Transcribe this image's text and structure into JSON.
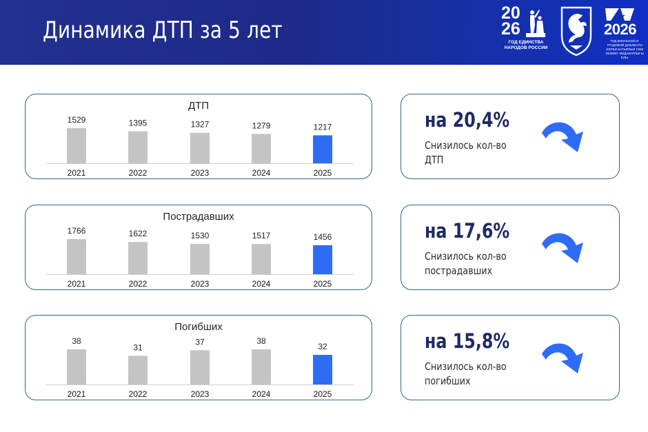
{
  "header": {
    "title": "Динамика ДТП за 5 лет",
    "logo_left": {
      "year_top": "20",
      "year_bottom": "26",
      "caption_line1": "ГОД ЕДИНСТВА",
      "caption_line2": "НАРОДОВ РОССИИ"
    },
    "logo_right": {
      "year": "2026",
      "caption": "ГОД ВОИНСКОЙ И ТРУДОВОЙ ДОБЛЕСТИ ХӘРБИ БАТЫРЛЫК ҺӘМ ХЕЗМӘТ ФИДАКАРЛЫГЫ ЕЛЫ"
    },
    "colors": {
      "gradient_start": "#22308f",
      "gradient_end": "#0f2fc4"
    }
  },
  "colors": {
    "bar_gray": "#c4c4c4",
    "bar_highlight": "#2f6cf6",
    "border": "#2b6a86",
    "arrow": "#2f6cf6",
    "pct_text": "#1e2b63"
  },
  "chart_data": [
    {
      "type": "bar",
      "title": "ДТП",
      "categories": [
        "2021",
        "2022",
        "2023",
        "2024",
        "2025"
      ],
      "values": [
        1529,
        1395,
        1327,
        1279,
        1217
      ],
      "data_labels": [
        "1529",
        "1395",
        "1327",
        "1279",
        "1217"
      ],
      "highlight_index": 4,
      "grid": false,
      "legend": "none"
    },
    {
      "type": "bar",
      "title": "Пострадавших",
      "categories": [
        "2021",
        "2022",
        "2023",
        "2024",
        "2025"
      ],
      "values": [
        1766,
        1622,
        1530,
        1517,
        1456
      ],
      "data_labels": [
        "1766",
        "1622",
        "1530",
        "1517",
        "1456"
      ],
      "highlight_index": 4,
      "grid": false,
      "legend": "none"
    },
    {
      "type": "bar",
      "title": "Погибших",
      "categories": [
        "2021",
        "2022",
        "2023",
        "2024",
        "2025"
      ],
      "values": [
        38,
        31,
        37,
        38,
        32
      ],
      "data_labels": [
        "38",
        "31",
        "37",
        "38",
        "32"
      ],
      "highlight_index": 4,
      "grid": false,
      "legend": "none"
    }
  ],
  "stats": [
    {
      "pct": "на 20,4%",
      "desc_line1": "Снизилось кол-во",
      "desc_line2": "ДТП",
      "icon": "curved-arrow-down-icon"
    },
    {
      "pct": "на 17,6%",
      "desc_line1": "Снизилось кол-во",
      "desc_line2": "пострадавших",
      "icon": "curved-arrow-down-icon"
    },
    {
      "pct": "на 15,8%",
      "desc_line1": "Снизилось кол-во",
      "desc_line2": "погибших",
      "icon": "curved-arrow-down-icon"
    }
  ]
}
